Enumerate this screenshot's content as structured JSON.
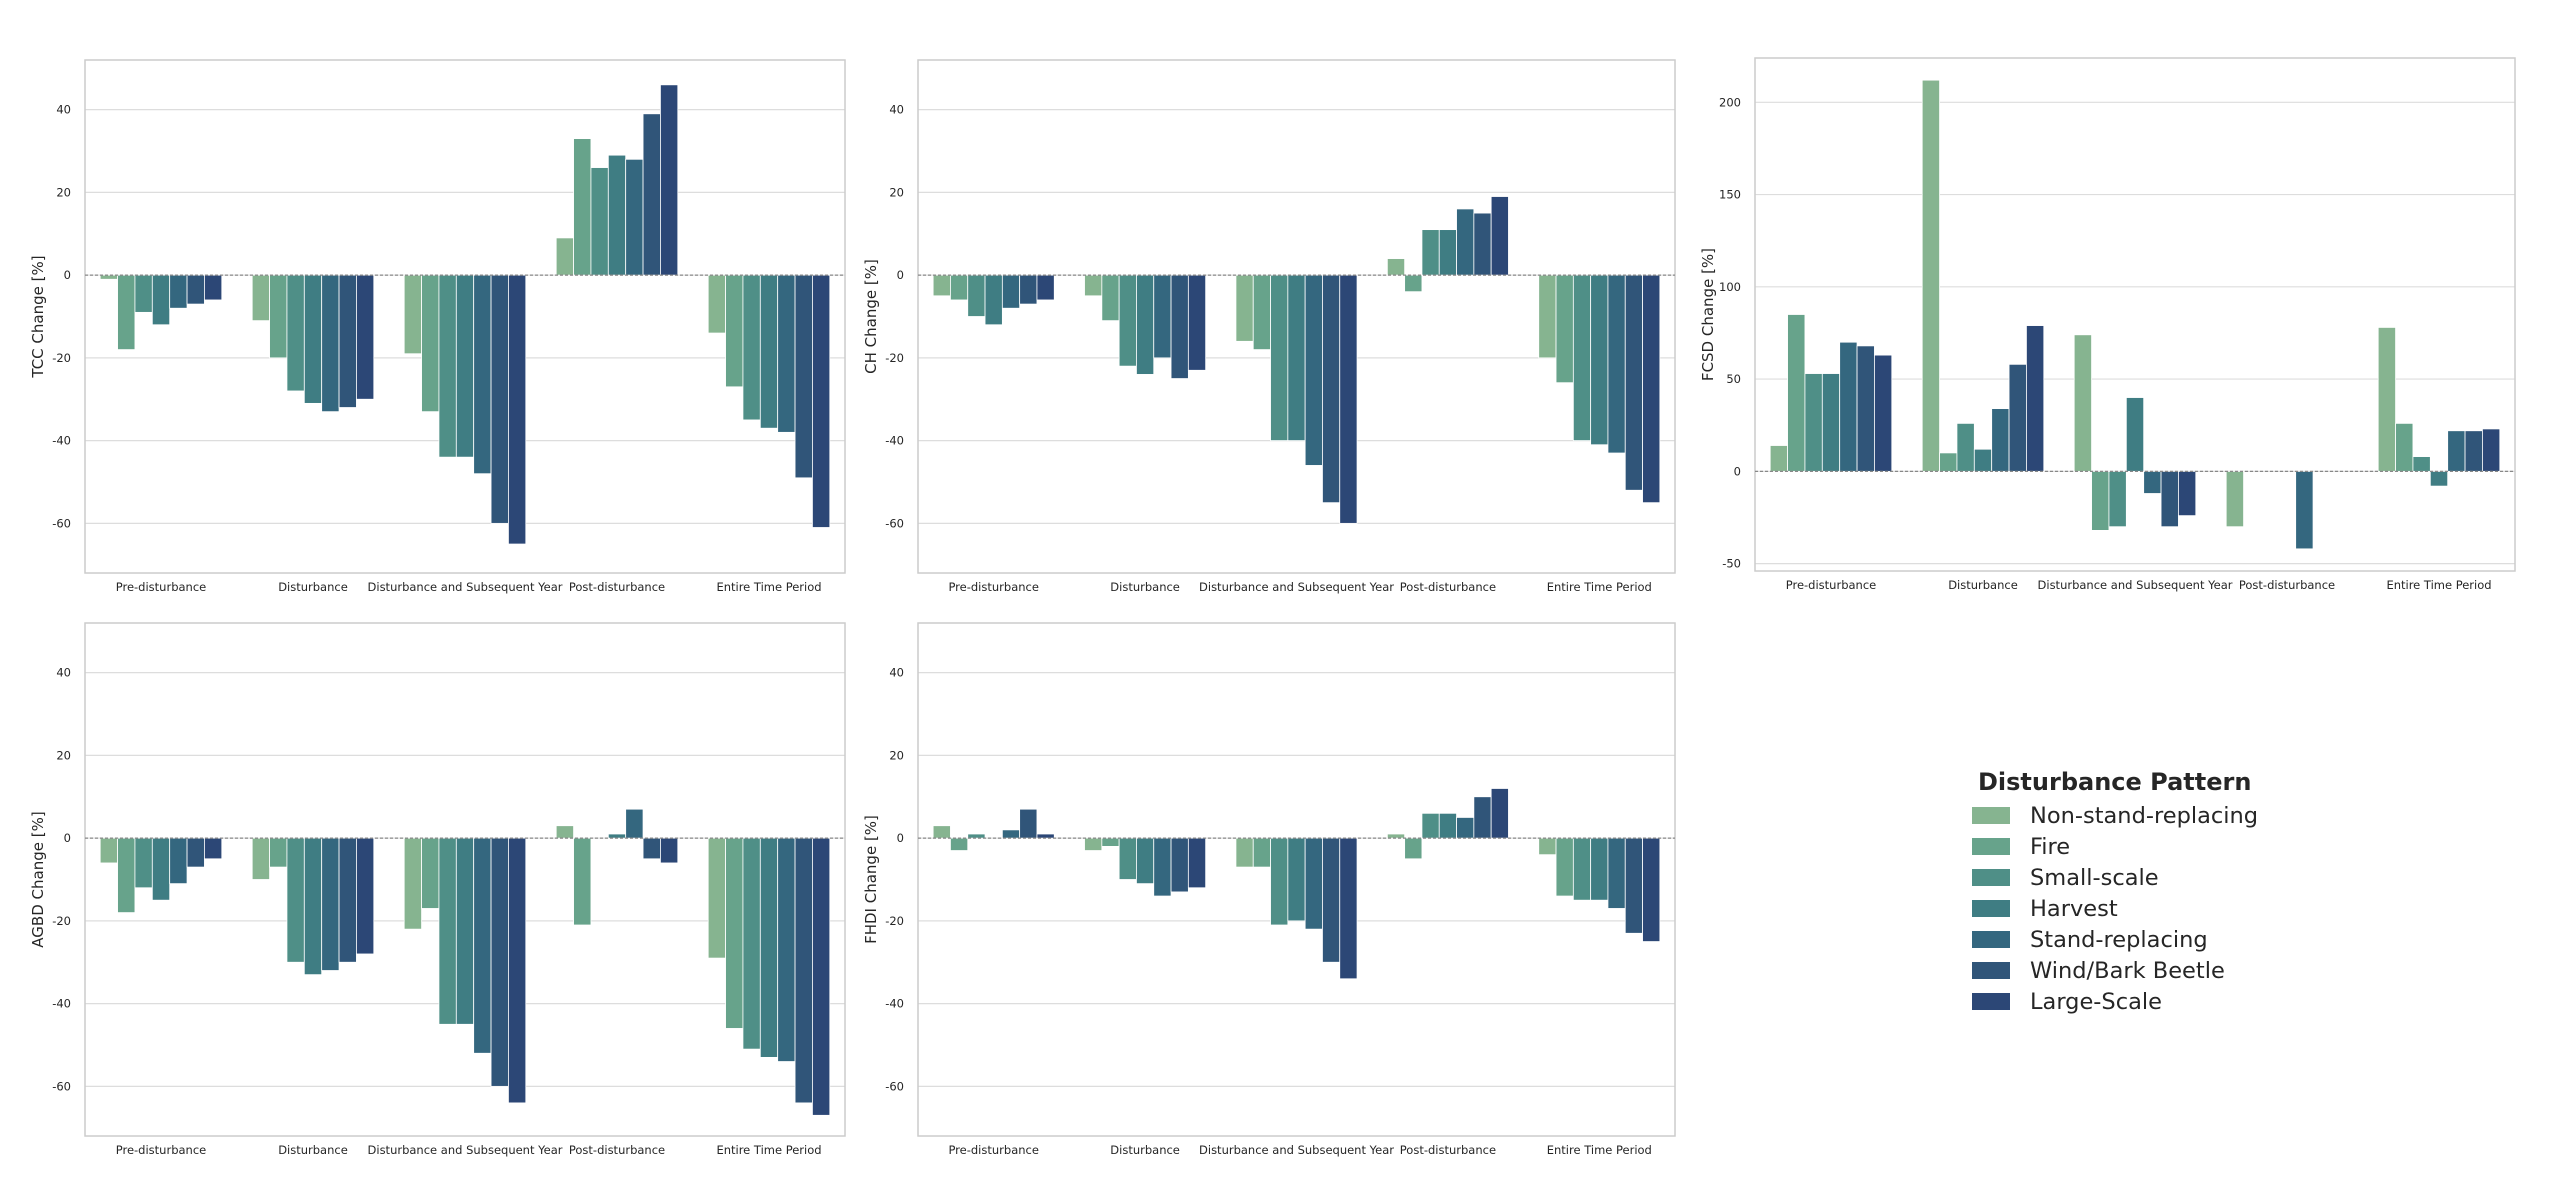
{
  "chart_data": [
    {
      "type": "bar",
      "ylabel": "TCC Change [%]",
      "categories": [
        "Pre-disturbance",
        "Disturbance",
        "Disturbance and Subsequent Year",
        "Post-disturbance",
        "Entire Time Period"
      ],
      "ylim": [
        -72,
        52
      ],
      "yticks": [
        -60,
        -40,
        -20,
        0,
        20,
        40
      ],
      "grid": true,
      "series": [
        {
          "name": "Non-stand-replacing",
          "values": [
            -1,
            -11,
            -19,
            9,
            -14
          ]
        },
        {
          "name": "Fire",
          "values": [
            -18,
            -20,
            -33,
            33,
            -27
          ]
        },
        {
          "name": "Small-scale",
          "values": [
            -9,
            -28,
            -44,
            26,
            -35
          ]
        },
        {
          "name": "Harvest",
          "values": [
            -12,
            -31,
            -44,
            29,
            -37
          ]
        },
        {
          "name": "Stand-replacing",
          "values": [
            -8,
            -33,
            -48,
            28,
            -38
          ]
        },
        {
          "name": "Wind/Bark Beetle",
          "values": [
            -7,
            -32,
            -60,
            39,
            -49
          ]
        },
        {
          "name": "Large-Scale",
          "values": [
            -6,
            -30,
            -65,
            46,
            -61
          ]
        }
      ]
    },
    {
      "type": "bar",
      "ylabel": "CH Change [%]",
      "categories": [
        "Pre-disturbance",
        "Disturbance",
        "Disturbance and Subsequent Year",
        "Post-disturbance",
        "Entire Time Period"
      ],
      "ylim": [
        -72,
        52
      ],
      "yticks": [
        -60,
        -40,
        -20,
        0,
        20,
        40
      ],
      "grid": true,
      "series": [
        {
          "name": "Non-stand-replacing",
          "values": [
            -5,
            -5,
            -16,
            4,
            -20
          ]
        },
        {
          "name": "Fire",
          "values": [
            -6,
            -11,
            -18,
            -4,
            -26
          ]
        },
        {
          "name": "Small-scale",
          "values": [
            -10,
            -22,
            -40,
            11,
            -40
          ]
        },
        {
          "name": "Harvest",
          "values": [
            -12,
            -24,
            -40,
            11,
            -41
          ]
        },
        {
          "name": "Stand-replacing",
          "values": [
            -8,
            -20,
            -46,
            16,
            -43
          ]
        },
        {
          "name": "Wind/Bark Beetle",
          "values": [
            -7,
            -25,
            -55,
            15,
            -52
          ]
        },
        {
          "name": "Large-Scale",
          "values": [
            -6,
            -23,
            -60,
            19,
            -55
          ]
        }
      ]
    },
    {
      "type": "bar",
      "ylabel": "FCSD Change [%]",
      "categories": [
        "Pre-disturbance",
        "Disturbance",
        "Disturbance and Subsequent Year",
        "Post-disturbance",
        "Entire Time Period"
      ],
      "ylim": [
        -54,
        224
      ],
      "yticks": [
        -50,
        0,
        50,
        100,
        150,
        200
      ],
      "grid": true,
      "series": [
        {
          "name": "Non-stand-replacing",
          "values": [
            14,
            212,
            74,
            -30,
            78
          ]
        },
        {
          "name": "Fire",
          "values": [
            85,
            10,
            -32,
            0,
            26
          ]
        },
        {
          "name": "Small-scale",
          "values": [
            53,
            26,
            -30,
            0,
            8
          ]
        },
        {
          "name": "Harvest",
          "values": [
            53,
            12,
            40,
            0,
            -8
          ]
        },
        {
          "name": "Stand-replacing",
          "values": [
            70,
            34,
            -12,
            -42,
            22
          ]
        },
        {
          "name": "Wind/Bark Beetle",
          "values": [
            68,
            58,
            -30,
            0,
            22
          ]
        },
        {
          "name": "Large-Scale",
          "values": [
            63,
            79,
            -24,
            0,
            23
          ]
        }
      ]
    },
    {
      "type": "bar",
      "ylabel": "AGBD Change [%]",
      "categories": [
        "Pre-disturbance",
        "Disturbance",
        "Disturbance and Subsequent Year",
        "Post-disturbance",
        "Entire Time Period"
      ],
      "ylim": [
        -72,
        52
      ],
      "yticks": [
        -60,
        -40,
        -20,
        0,
        20,
        40
      ],
      "grid": true,
      "series": [
        {
          "name": "Non-stand-replacing",
          "values": [
            -6,
            -10,
            -22,
            3,
            -29
          ]
        },
        {
          "name": "Fire",
          "values": [
            -18,
            -7,
            -17,
            -21,
            -46
          ]
        },
        {
          "name": "Small-scale",
          "values": [
            -12,
            -30,
            -45,
            0,
            -51
          ]
        },
        {
          "name": "Harvest",
          "values": [
            -15,
            -33,
            -45,
            1,
            -53
          ]
        },
        {
          "name": "Stand-replacing",
          "values": [
            -11,
            -32,
            -52,
            7,
            -54
          ]
        },
        {
          "name": "Wind/Bark Beetle",
          "values": [
            -7,
            -30,
            -60,
            -5,
            -64
          ]
        },
        {
          "name": "Large-Scale",
          "values": [
            -5,
            -28,
            -64,
            -6,
            -67
          ]
        }
      ]
    },
    {
      "type": "bar",
      "ylabel": "FHDI Change [%]",
      "categories": [
        "Pre-disturbance",
        "Disturbance",
        "Disturbance and Subsequent Year",
        "Post-disturbance",
        "Entire Time Period"
      ],
      "ylim": [
        -72,
        52
      ],
      "yticks": [
        -60,
        -40,
        -20,
        0,
        20,
        40
      ],
      "grid": true,
      "series": [
        {
          "name": "Non-stand-replacing",
          "values": [
            3,
            -3,
            -7,
            1,
            -4
          ]
        },
        {
          "name": "Fire",
          "values": [
            -3,
            -2,
            -7,
            -5,
            -14
          ]
        },
        {
          "name": "Small-scale",
          "values": [
            1,
            -10,
            -21,
            6,
            -15
          ]
        },
        {
          "name": "Harvest",
          "values": [
            0,
            -11,
            -20,
            6,
            -15
          ]
        },
        {
          "name": "Stand-replacing",
          "values": [
            2,
            -14,
            -22,
            5,
            -17
          ]
        },
        {
          "name": "Wind/Bark Beetle",
          "values": [
            7,
            -13,
            -30,
            10,
            -23
          ]
        },
        {
          "name": "Large-Scale",
          "values": [
            1,
            -12,
            -34,
            12,
            -25
          ]
        }
      ]
    }
  ],
  "colors": [
    "#86b490",
    "#67a38b",
    "#4f8f87",
    "#3f7d83",
    "#34677f",
    "#305579",
    "#2c4776"
  ],
  "legend": {
    "title": "Disturbance Pattern",
    "items": [
      "Non-stand-replacing",
      "Fire",
      "Small-scale",
      "Harvest",
      "Stand-replacing",
      "Wind/Bark Beetle",
      "Large-Scale"
    ]
  }
}
